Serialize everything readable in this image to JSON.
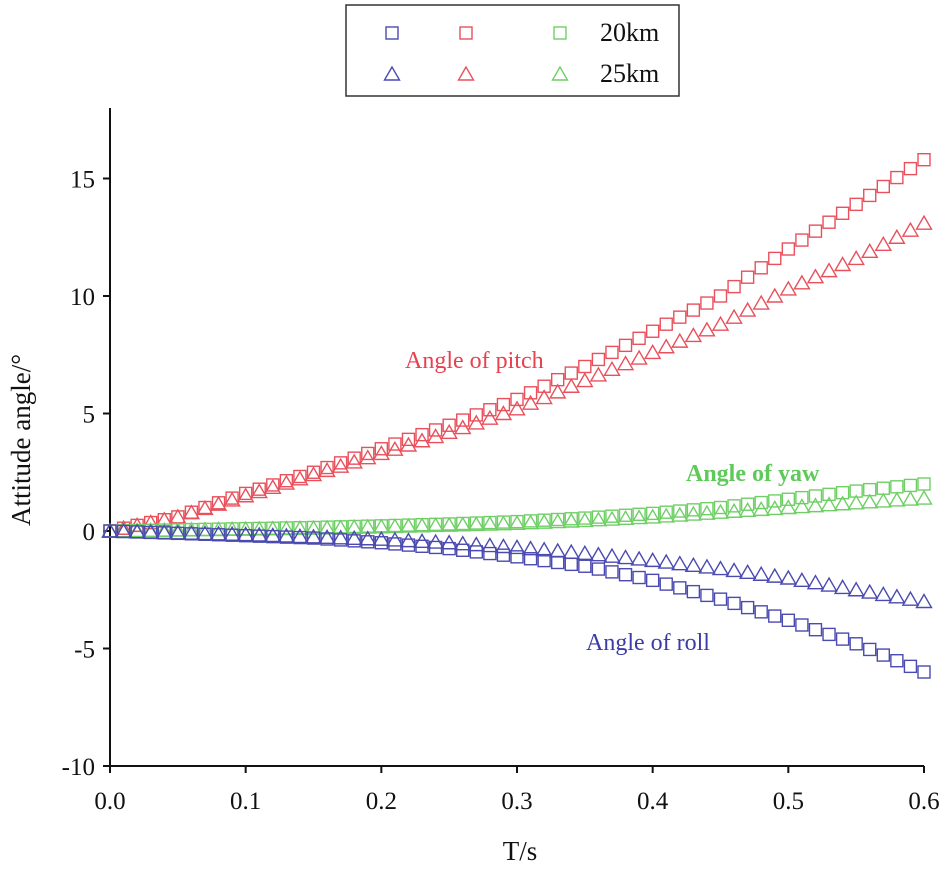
{
  "chart_data": {
    "type": "scatter",
    "xlabel": "T/s",
    "ylabel": "Attitude angle/°",
    "xlim": [
      0,
      0.6
    ],
    "ylim": [
      -10,
      18
    ],
    "xticks": [
      "0.0",
      "0.1",
      "0.2",
      "0.3",
      "0.4",
      "0.5",
      "0.6"
    ],
    "yticks": [
      "-10",
      "-5",
      "0",
      "5",
      "10",
      "15"
    ],
    "legend": {
      "position": "top-center",
      "rows": [
        {
          "label": "20km",
          "marker": "square"
        },
        {
          "label": "25km",
          "marker": "triangle"
        }
      ]
    },
    "annotations": [
      {
        "text": "Angle of pitch",
        "color": "#e8404f"
      },
      {
        "text": "Angle of yaw",
        "color": "#5fc95a"
      },
      {
        "text": "Angle of roll",
        "color": "#3b3ba8"
      }
    ],
    "colors": {
      "roll": "#4a4ab0",
      "pitch": "#e8505c",
      "yaw": "#6fcf66"
    },
    "series": [
      {
        "name": "Angle of pitch 20km",
        "group": "pitch",
        "marker": "square",
        "x": [
          0.0,
          0.05,
          0.1,
          0.15,
          0.2,
          0.25,
          0.3,
          0.35,
          0.4,
          0.45,
          0.5,
          0.55,
          0.6
        ],
        "y": [
          0.0,
          0.6,
          1.6,
          2.5,
          3.5,
          4.5,
          5.6,
          7.0,
          8.5,
          10.0,
          12.0,
          13.9,
          15.8
        ]
      },
      {
        "name": "Angle of pitch 25km",
        "group": "pitch",
        "marker": "triangle",
        "x": [
          0.0,
          0.05,
          0.1,
          0.15,
          0.2,
          0.25,
          0.3,
          0.35,
          0.4,
          0.45,
          0.5,
          0.55,
          0.6
        ],
        "y": [
          0.0,
          0.6,
          1.5,
          2.4,
          3.3,
          4.2,
          5.2,
          6.4,
          7.6,
          8.8,
          10.3,
          11.6,
          13.1
        ]
      },
      {
        "name": "Angle of yaw 20km",
        "group": "yaw",
        "marker": "square",
        "x": [
          0.0,
          0.05,
          0.1,
          0.15,
          0.2,
          0.25,
          0.3,
          0.35,
          0.4,
          0.45,
          0.5,
          0.55,
          0.6
        ],
        "y": [
          0.0,
          0.05,
          0.1,
          0.15,
          0.22,
          0.3,
          0.4,
          0.55,
          0.75,
          1.0,
          1.35,
          1.7,
          2.0
        ]
      },
      {
        "name": "Angle of yaw 25km",
        "group": "yaw",
        "marker": "triangle",
        "x": [
          0.0,
          0.05,
          0.1,
          0.15,
          0.2,
          0.25,
          0.3,
          0.35,
          0.4,
          0.45,
          0.5,
          0.55,
          0.6
        ],
        "y": [
          0.0,
          0.04,
          0.08,
          0.12,
          0.18,
          0.25,
          0.33,
          0.45,
          0.6,
          0.8,
          1.0,
          1.2,
          1.4
        ]
      },
      {
        "name": "Angle of roll 20km",
        "group": "roll",
        "marker": "square",
        "x": [
          0.0,
          0.05,
          0.1,
          0.15,
          0.2,
          0.25,
          0.3,
          0.35,
          0.4,
          0.45,
          0.5,
          0.55,
          0.6
        ],
        "y": [
          0.0,
          -0.1,
          -0.2,
          -0.3,
          -0.5,
          -0.75,
          -1.1,
          -1.5,
          -2.1,
          -2.9,
          -3.8,
          -4.8,
          -6.0
        ]
      },
      {
        "name": "Angle of roll 25km",
        "group": "roll",
        "marker": "triangle",
        "x": [
          0.0,
          0.05,
          0.1,
          0.15,
          0.2,
          0.25,
          0.3,
          0.35,
          0.4,
          0.45,
          0.5,
          0.55,
          0.6
        ],
        "y": [
          0.0,
          -0.08,
          -0.15,
          -0.25,
          -0.35,
          -0.5,
          -0.7,
          -0.95,
          -1.25,
          -1.6,
          -2.0,
          -2.5,
          -3.0
        ]
      }
    ]
  }
}
